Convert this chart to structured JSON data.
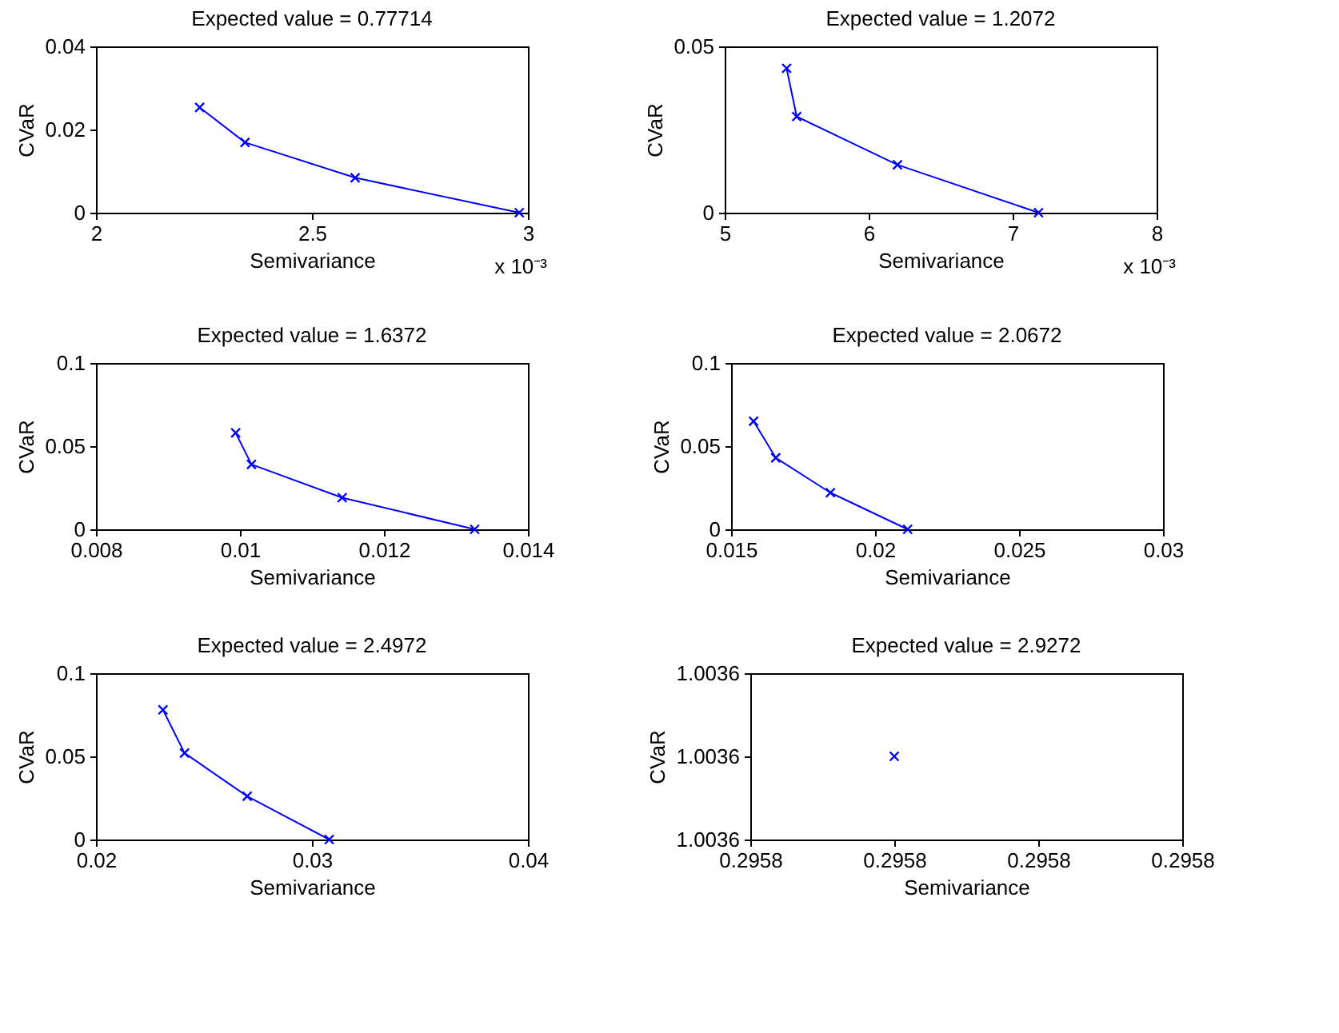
{
  "chart_data": [
    {
      "type": "line",
      "title": "Expected value = 0.77714",
      "xlabel": "Semivariance",
      "ylabel": "CVaR",
      "annotations": [
        "x 10⁻³"
      ],
      "marker": "cross",
      "line_style": "solid",
      "grid": false,
      "series": [
        {
          "color": "#0000ff",
          "x": [
            2.24,
            2.345,
            2.6,
            2.98
          ],
          "values": [
            0.0253,
            0.0169,
            0.0084,
            0.0
          ]
        }
      ],
      "xlim": [
        2,
        3
      ],
      "xticks": [
        2,
        2.5,
        3
      ],
      "ylim": [
        0,
        0.04
      ],
      "yticks": [
        0,
        0.02,
        0.04
      ]
    },
    {
      "type": "line",
      "title": "Expected value = 1.2072",
      "xlabel": "Semivariance",
      "ylabel": "CVaR",
      "annotations": [
        "x 10⁻³"
      ],
      "marker": "cross",
      "line_style": "solid",
      "grid": false,
      "series": [
        {
          "color": "#0000ff",
          "x": [
            5.43,
            5.5,
            6.2,
            7.18
          ],
          "values": [
            0.0434,
            0.0289,
            0.0144,
            0.0
          ]
        }
      ],
      "xlim": [
        5,
        8
      ],
      "xticks": [
        5,
        6,
        7,
        8
      ],
      "ylim": [
        0,
        0.05
      ],
      "yticks": [
        0,
        0.05
      ]
    },
    {
      "type": "line",
      "title": "Expected value = 1.6372",
      "xlabel": "Semivariance",
      "ylabel": "CVaR",
      "marker": "cross",
      "line_style": "solid",
      "grid": false,
      "series": [
        {
          "color": "#0000ff",
          "x": [
            0.00994,
            0.01016,
            0.01142,
            0.01326
          ],
          "values": [
            0.058,
            0.039,
            0.019,
            0.0
          ]
        }
      ],
      "xlim": [
        0.008,
        0.014
      ],
      "xticks": [
        0.008,
        0.01,
        0.012,
        0.014
      ],
      "ylim": [
        0,
        0.1
      ],
      "yticks": [
        0,
        0.05,
        0.1
      ]
    },
    {
      "type": "line",
      "title": "Expected value = 2.0672",
      "xlabel": "Semivariance",
      "ylabel": "CVaR",
      "marker": "cross",
      "line_style": "solid",
      "grid": false,
      "series": [
        {
          "color": "#0000ff",
          "x": [
            0.01578,
            0.01655,
            0.01845,
            0.02113
          ],
          "values": [
            0.065,
            0.043,
            0.022,
            0.0
          ]
        }
      ],
      "xlim": [
        0.015,
        0.03
      ],
      "xticks": [
        0.015,
        0.02,
        0.025,
        0.03
      ],
      "ylim": [
        0,
        0.1
      ],
      "yticks": [
        0,
        0.05,
        0.1
      ]
    },
    {
      "type": "line",
      "title": "Expected value = 2.4972",
      "xlabel": "Semivariance",
      "ylabel": "CVaR",
      "marker": "cross",
      "line_style": "solid",
      "grid": false,
      "series": [
        {
          "color": "#0000ff",
          "x": [
            0.0231,
            0.0241,
            0.027,
            0.0308
          ],
          "values": [
            0.078,
            0.052,
            0.026,
            0.0
          ]
        }
      ],
      "xlim": [
        0.02,
        0.04
      ],
      "xticks": [
        0.02,
        0.03,
        0.04
      ],
      "ylim": [
        0,
        0.1
      ],
      "yticks": [
        0,
        0.05,
        0.1
      ]
    },
    {
      "type": "scatter",
      "title": "Expected value = 2.9272",
      "xlabel": "Semivariance",
      "ylabel": "CVaR",
      "marker": "cross",
      "grid": false,
      "series": [
        {
          "color": "#0000ff",
          "x": [
            0.295801
          ],
          "values": [
            1.00361
          ]
        }
      ],
      "xlim": [
        0.2958,
        0.295803
      ],
      "xticks": [
        {
          "value": 0.2958,
          "label": "0.2958"
        },
        {
          "value": 0.295801,
          "label": "0.2958"
        },
        {
          "value": 0.295802,
          "label": "0.2958"
        },
        {
          "value": 0.295803,
          "label": "0.2958"
        }
      ],
      "ylim": [
        1.0036,
        1.00362
      ],
      "yticks": [
        {
          "value": 1.0036,
          "label": "1.0036"
        },
        {
          "value": 1.00361,
          "label": "1.0036"
        },
        {
          "value": 1.00362,
          "label": "1.0036"
        }
      ]
    }
  ]
}
